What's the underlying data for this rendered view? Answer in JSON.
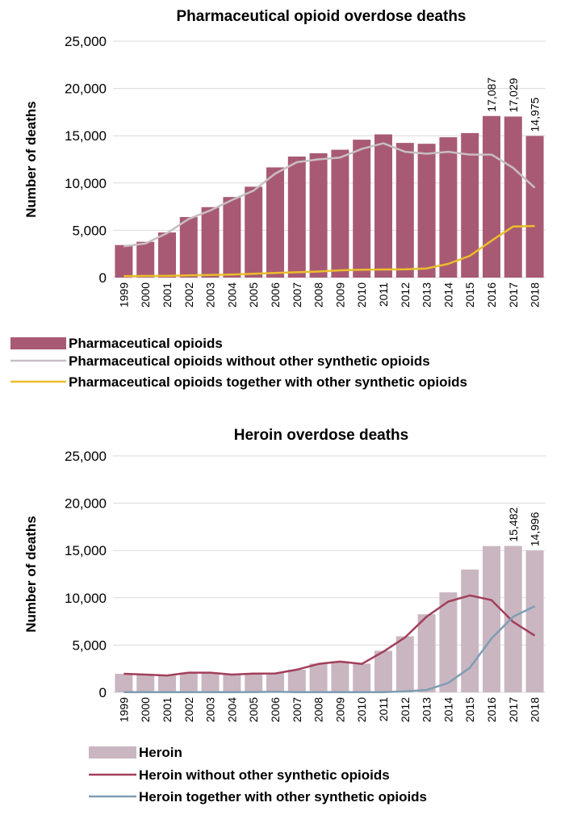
{
  "chart_data": [
    {
      "type": "bar",
      "title": "Pharmaceutical opioid overdose deaths",
      "ylabel": "Number of deaths",
      "ylim": [
        0,
        25000
      ],
      "yticks": [
        "0",
        "5,000",
        "10,000",
        "15,000",
        "20,000",
        "25,000"
      ],
      "grid": true,
      "legend_placement": "bottom",
      "categories": [
        "1999",
        "2000",
        "2001",
        "2002",
        "2003",
        "2004",
        "2005",
        "2006",
        "2007",
        "2008",
        "2009",
        "2010",
        "2011",
        "2012",
        "2013",
        "2014",
        "2015",
        "2016",
        "2017",
        "2018"
      ],
      "bars": {
        "name": "Pharmaceutical opioids",
        "color": "#a85a74",
        "values": [
          3440,
          3785,
          4770,
          6400,
          7450,
          8520,
          9610,
          11650,
          12800,
          13150,
          13520,
          14580,
          15140,
          14240,
          14150,
          14840,
          15280,
          17087,
          17029,
          14975
        ]
      },
      "data_labels": [
        {
          "index": 17,
          "text": "17,087"
        },
        {
          "index": 18,
          "text": "17,029"
        },
        {
          "index": 19,
          "text": "14,975"
        }
      ],
      "lines": [
        {
          "name": "Pharmaceutical opioids without other synthetic opioids",
          "color": "#c8bec4",
          "values": [
            3300,
            3600,
            4700,
            6200,
            7100,
            8200,
            9200,
            11000,
            12200,
            12500,
            12700,
            13600,
            14200,
            13300,
            13100,
            13300,
            13000,
            13000,
            11600,
            9500
          ]
        },
        {
          "name": "Pharmaceutical opioids together with other synthetic opioids",
          "color": "#eabe2a",
          "values": [
            150,
            170,
            180,
            230,
            270,
            320,
            400,
            490,
            560,
            640,
            770,
            830,
            850,
            870,
            960,
            1450,
            2300,
            3900,
            5400,
            5450
          ]
        }
      ]
    },
    {
      "type": "bar",
      "title": "Heroin overdose deaths",
      "ylabel": "Number of deaths",
      "ylim": [
        0,
        25000
      ],
      "yticks": [
        "0",
        "5,000",
        "10,000",
        "15,000",
        "20,000",
        "25,000"
      ],
      "grid": true,
      "legend_placement": "bottom",
      "categories": [
        "1999",
        "2000",
        "2001",
        "2002",
        "2003",
        "2004",
        "2005",
        "2006",
        "2007",
        "2008",
        "2009",
        "2010",
        "2011",
        "2012",
        "2013",
        "2014",
        "2015",
        "2016",
        "2017",
        "2018"
      ],
      "bars": {
        "name": "Heroin",
        "color": "#c9b6c1",
        "values": [
          1960,
          1842,
          1779,
          2089,
          2080,
          1878,
          2009,
          2088,
          2399,
          3041,
          3278,
          3036,
          4397,
          5925,
          8257,
          10574,
          12989,
          15469,
          15482,
          14996
        ]
      },
      "data_labels": [
        {
          "index": 18,
          "text": "15,482"
        },
        {
          "index": 19,
          "text": "14,996"
        }
      ],
      "lines": [
        {
          "name": "Heroin without other synthetic opioids",
          "color": "#a23f5a",
          "values": [
            1960,
            1880,
            1780,
            2080,
            2080,
            1880,
            1980,
            2000,
            2400,
            3000,
            3250,
            3000,
            4300,
            5800,
            8000,
            9600,
            10250,
            9750,
            7450,
            6000
          ]
        },
        {
          "name": "Heroin together with other synthetic opioids",
          "color": "#7f9db2",
          "values": [
            20,
            20,
            20,
            20,
            20,
            20,
            30,
            60,
            20,
            20,
            20,
            20,
            20,
            100,
            250,
            1000,
            2600,
            5700,
            8000,
            9100
          ]
        }
      ]
    }
  ]
}
